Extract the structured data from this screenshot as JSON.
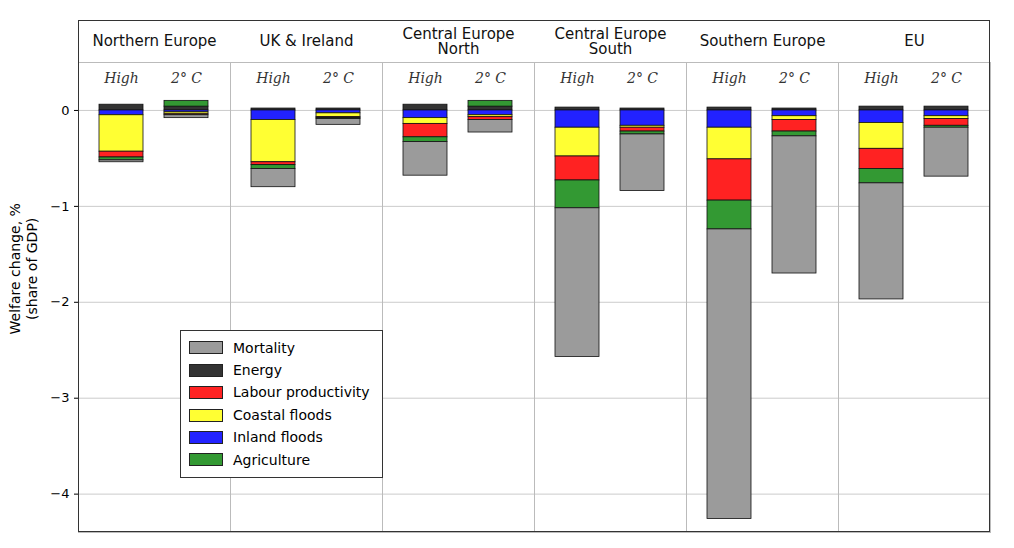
{
  "chart_data": {
    "type": "bar",
    "stacked": true,
    "ylabel": "Welfare change, %\n(share of GDP)",
    "categories": [
      "Northern Europe",
      "UK & Ireland",
      "Central Europe North",
      "Central Europe South",
      "Southern Europe",
      "EU"
    ],
    "subcategories": [
      "High",
      "2° C"
    ],
    "series": [
      {
        "name": "Mortality",
        "color": "#9b9b9b",
        "values": [
          [
            -0.02,
            -0.03
          ],
          [
            -0.19,
            -0.06
          ],
          [
            -0.35,
            -0.13
          ],
          [
            -1.55,
            -0.59
          ],
          [
            -3.02,
            -1.43
          ],
          [
            -1.21,
            -0.51
          ]
        ]
      },
      {
        "name": "Energy",
        "color": "#333333",
        "values": [
          [
            0.06,
            0.04
          ],
          [
            0.02,
            0.02
          ],
          [
            0.06,
            0.04
          ],
          [
            0.03,
            0.02
          ],
          [
            0.03,
            0.02
          ],
          [
            0.04,
            0.04
          ]
        ]
      },
      {
        "name": "Labour productivity",
        "color": "#ff2222",
        "values": [
          [
            -0.06,
            -0.01
          ],
          [
            -0.03,
            -0.01
          ],
          [
            -0.14,
            -0.03
          ],
          [
            -0.25,
            -0.04
          ],
          [
            -0.43,
            -0.12
          ],
          [
            -0.21,
            -0.07
          ]
        ]
      },
      {
        "name": "Coastal floods",
        "color": "#ffff33",
        "values": [
          [
            -0.38,
            -0.02
          ],
          [
            -0.44,
            -0.04
          ],
          [
            -0.06,
            -0.02
          ],
          [
            -0.3,
            -0.02
          ],
          [
            -0.33,
            -0.04
          ],
          [
            -0.27,
            -0.03
          ]
        ]
      },
      {
        "name": "Inland floods",
        "color": "#2222ff",
        "values": [
          [
            -0.05,
            -0.02
          ],
          [
            -0.1,
            -0.03
          ],
          [
            -0.08,
            -0.05
          ],
          [
            -0.18,
            -0.16
          ],
          [
            -0.18,
            -0.06
          ],
          [
            -0.13,
            -0.06
          ]
        ]
      },
      {
        "name": "Agriculture",
        "color": "#339933",
        "values": [
          [
            -0.03,
            0.06
          ],
          [
            -0.04,
            -0.01
          ],
          [
            -0.05,
            0.06
          ],
          [
            -0.29,
            -0.03
          ],
          [
            -0.3,
            -0.05
          ],
          [
            -0.15,
            -0.02
          ]
        ]
      }
    ],
    "ylim": [
      -4.4,
      0.5
    ],
    "yticks": [
      -4,
      -3,
      -2,
      -1,
      0
    ],
    "grid": true,
    "legend": "lower left"
  }
}
